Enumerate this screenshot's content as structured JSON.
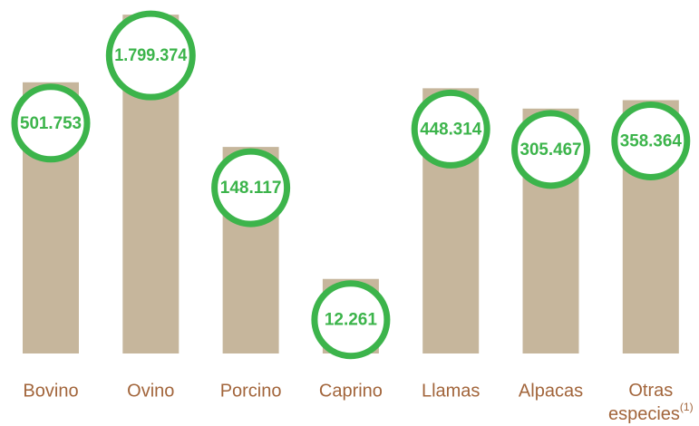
{
  "chart_data": {
    "type": "bar",
    "categories": [
      "Bovino",
      "Ovino",
      "Porcino",
      "Caprino",
      "Llamas",
      "Alpacas",
      "Otras especies"
    ],
    "category_notes": [
      null,
      null,
      null,
      null,
      null,
      null,
      "(1)"
    ],
    "values": [
      501753,
      1799374,
      148117,
      12261,
      448314,
      305467,
      358364
    ],
    "value_labels": [
      "501.753",
      "1.799.374",
      "148.117",
      "12.261",
      "448.314",
      "305.467",
      "358.364"
    ],
    "color": "#c6b69c",
    "label_color": "#3cb44b",
    "category_color": "#a2653b",
    "log_scale": true,
    "ylim": [
      3000,
      2000000
    ]
  }
}
